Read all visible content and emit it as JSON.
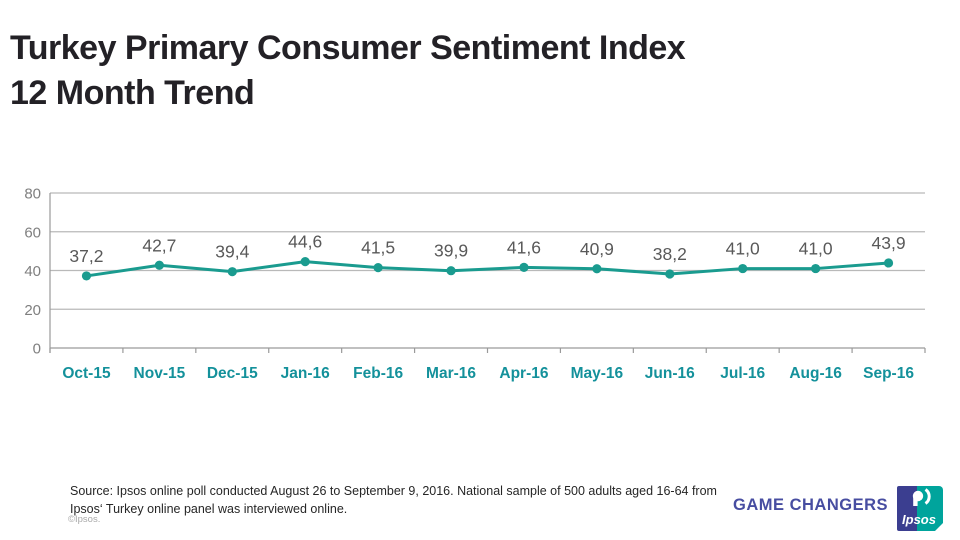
{
  "header": {
    "title_line1": "Turkey Primary Consumer Sentiment Index",
    "title_line2": "12 Month Trend"
  },
  "chart_data": {
    "type": "line",
    "title": "Turkey Primary Consumer Sentiment Index - 12 Month Trend",
    "categories": [
      "Oct-15",
      "Nov-15",
      "Dec-15",
      "Jan-16",
      "Feb-16",
      "Mar-16",
      "Apr-16",
      "May-16",
      "Jun-16",
      "Jul-16",
      "Aug-16",
      "Sep-16"
    ],
    "values": [
      37.2,
      42.7,
      39.4,
      44.6,
      41.5,
      39.9,
      41.6,
      40.9,
      38.2,
      41.0,
      41.0,
      43.9
    ],
    "data_labels": [
      "37,2",
      "42,7",
      "39,4",
      "44,6",
      "41,5",
      "39,9",
      "41,6",
      "40,9",
      "38,2",
      "41,0",
      "41,0",
      "43,9"
    ],
    "xlabel": "",
    "ylabel": "",
    "ylim": [
      0,
      80
    ],
    "yticks": [
      0,
      20,
      40,
      60,
      80
    ],
    "grid": true,
    "legend": "none",
    "colors": {
      "line": "#1a9b8f",
      "marker": "#1a9b8f",
      "grid": "#b9b9b9",
      "axis": "#9a9a9a",
      "ytick_label": "#7f7f7f",
      "xtick_label": "#14919b",
      "data_label": "#595959"
    }
  },
  "footer": {
    "source_line1": "Source: Ipsos online poll conducted August 26 to September 9, 2016. National sample of 500 adults aged 16-64 from",
    "source_line2": "Ipsos‘ Turkey online panel was interviewed online.",
    "copyright": "©Ipsos.",
    "brand_text": "GAME CHANGERS",
    "logo_text": "Ipsos",
    "logo_colors": {
      "blue": "#3b3e90",
      "teal": "#00a49c"
    }
  }
}
